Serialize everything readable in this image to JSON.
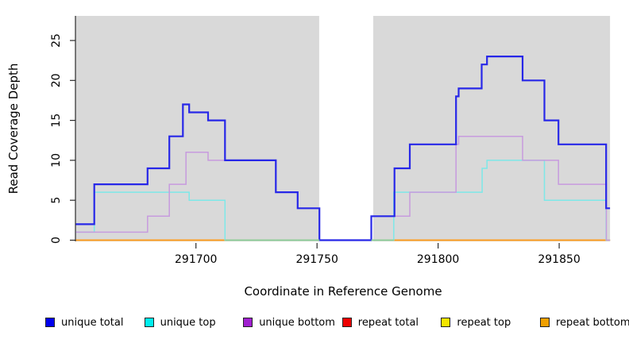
{
  "axes": {
    "xlabel": "Coordinate in Reference Genome",
    "ylabel": "Read Coverage Depth",
    "xlim": [
      291650.4,
      291871.0
    ],
    "ylim": [
      0,
      28.1
    ],
    "grid": false,
    "panel_bg": "#D9D9D9",
    "axis_color": "#2b2b2b",
    "x_ticks": [
      {
        "value": 291700,
        "label": "291700"
      },
      {
        "value": 291750,
        "label": "291750"
      },
      {
        "value": 291800,
        "label": "291800"
      },
      {
        "value": 291850,
        "label": "291850"
      }
    ],
    "y_ticks": [
      {
        "value": 0,
        "label": "0"
      },
      {
        "value": 5,
        "label": "5"
      },
      {
        "value": 10,
        "label": "10"
      },
      {
        "value": 15,
        "label": "15"
      },
      {
        "value": 20,
        "label": "20"
      },
      {
        "value": 25,
        "label": "25"
      }
    ]
  },
  "chart_data": {
    "type": "line",
    "subtype": "step",
    "legend_position": "bottom",
    "mask_region": {
      "x1": 291750.9,
      "x2": 291773.2,
      "color": "#FFFFFF"
    },
    "overlap_green": "#8CCE9C",
    "series": [
      {
        "id": "repeat-total",
        "name": "repeat total",
        "line_color": "#DD0000",
        "legend_color": "#EE0000",
        "width": 1.5,
        "draw_order": 1,
        "points": [
          [
            291650.4,
            0
          ]
        ],
        "xend": 291871.0
      },
      {
        "id": "repeat-top",
        "name": "repeat top",
        "line_color": "#F2E400",
        "legend_color": "#F5E600",
        "width": 1.5,
        "draw_order": 2,
        "points": [
          [
            291650.4,
            0
          ]
        ],
        "xend": 291871.0
      },
      {
        "id": "repeat-bottom",
        "name": "repeat bottom",
        "line_color": "#FF9D20",
        "legend_color": "#F0A000",
        "width": 1.8,
        "draw_order": 3,
        "points": [
          [
            291650.4,
            0
          ]
        ],
        "xend": 291871.0
      },
      {
        "id": "unique-top",
        "name": "unique top",
        "line_color": "#7DE8E8",
        "legend_color": "#00EEEE",
        "width": 1.5,
        "draw_order": 4,
        "points": [
          [
            291650.4,
            1
          ],
          [
            291658,
            6
          ],
          [
            291697.2,
            5
          ],
          [
            291712,
            0
          ],
          [
            291781.7,
            6
          ],
          [
            291818.2,
            9
          ],
          [
            291820.2,
            10
          ],
          [
            291843.9,
            5
          ],
          [
            291869.4,
            0
          ]
        ],
        "xend": 291871.0
      },
      {
        "id": "unique-bottom",
        "name": "unique bottom",
        "line_color": "#C79BDE",
        "legend_color": "#A020D0",
        "width": 1.5,
        "draw_order": 5,
        "points": [
          [
            291650.4,
            1
          ],
          [
            291680,
            3
          ],
          [
            291689,
            7
          ],
          [
            291695.9,
            11
          ],
          [
            291705,
            10
          ],
          [
            291733,
            6
          ],
          [
            291742,
            4
          ],
          [
            291751,
            0
          ],
          [
            291772.4,
            3
          ],
          [
            291788.3,
            6
          ],
          [
            291807.4,
            12
          ],
          [
            291808.5,
            13
          ],
          [
            291834.9,
            10
          ],
          [
            291849.7,
            7
          ],
          [
            291869.5,
            0
          ]
        ],
        "xend": 291871.0
      },
      {
        "id": "unique-total",
        "name": "unique total",
        "line_color": "#2727E8",
        "legend_color": "#0000EE",
        "width": 2.2,
        "draw_order": 6,
        "points": [
          [
            291650.4,
            2
          ],
          [
            291658,
            7
          ],
          [
            291680,
            9
          ],
          [
            291689,
            13
          ],
          [
            291694.6,
            17
          ],
          [
            291697.2,
            16
          ],
          [
            291705,
            15
          ],
          [
            291712,
            10
          ],
          [
            291733,
            6
          ],
          [
            291742,
            4
          ],
          [
            291751,
            0
          ],
          [
            291772.4,
            3
          ],
          [
            291782,
            9
          ],
          [
            291788.3,
            12
          ],
          [
            291807.4,
            18
          ],
          [
            291808.5,
            19
          ],
          [
            291818,
            22
          ],
          [
            291820.2,
            23
          ],
          [
            291834.9,
            20
          ],
          [
            291843.9,
            15
          ],
          [
            291849.7,
            12
          ],
          [
            291869.4,
            4
          ]
        ],
        "xend": 291871.0
      }
    ]
  },
  "legend": {
    "items": [
      {
        "id": "unique-total",
        "label": "unique total"
      },
      {
        "id": "unique-top",
        "label": "unique top"
      },
      {
        "id": "unique-bottom",
        "label": "unique bottom"
      },
      {
        "id": "repeat-total",
        "label": "repeat total"
      },
      {
        "id": "repeat-top",
        "label": "repeat top"
      },
      {
        "id": "repeat-bottom",
        "label": "repeat bottom"
      }
    ]
  }
}
